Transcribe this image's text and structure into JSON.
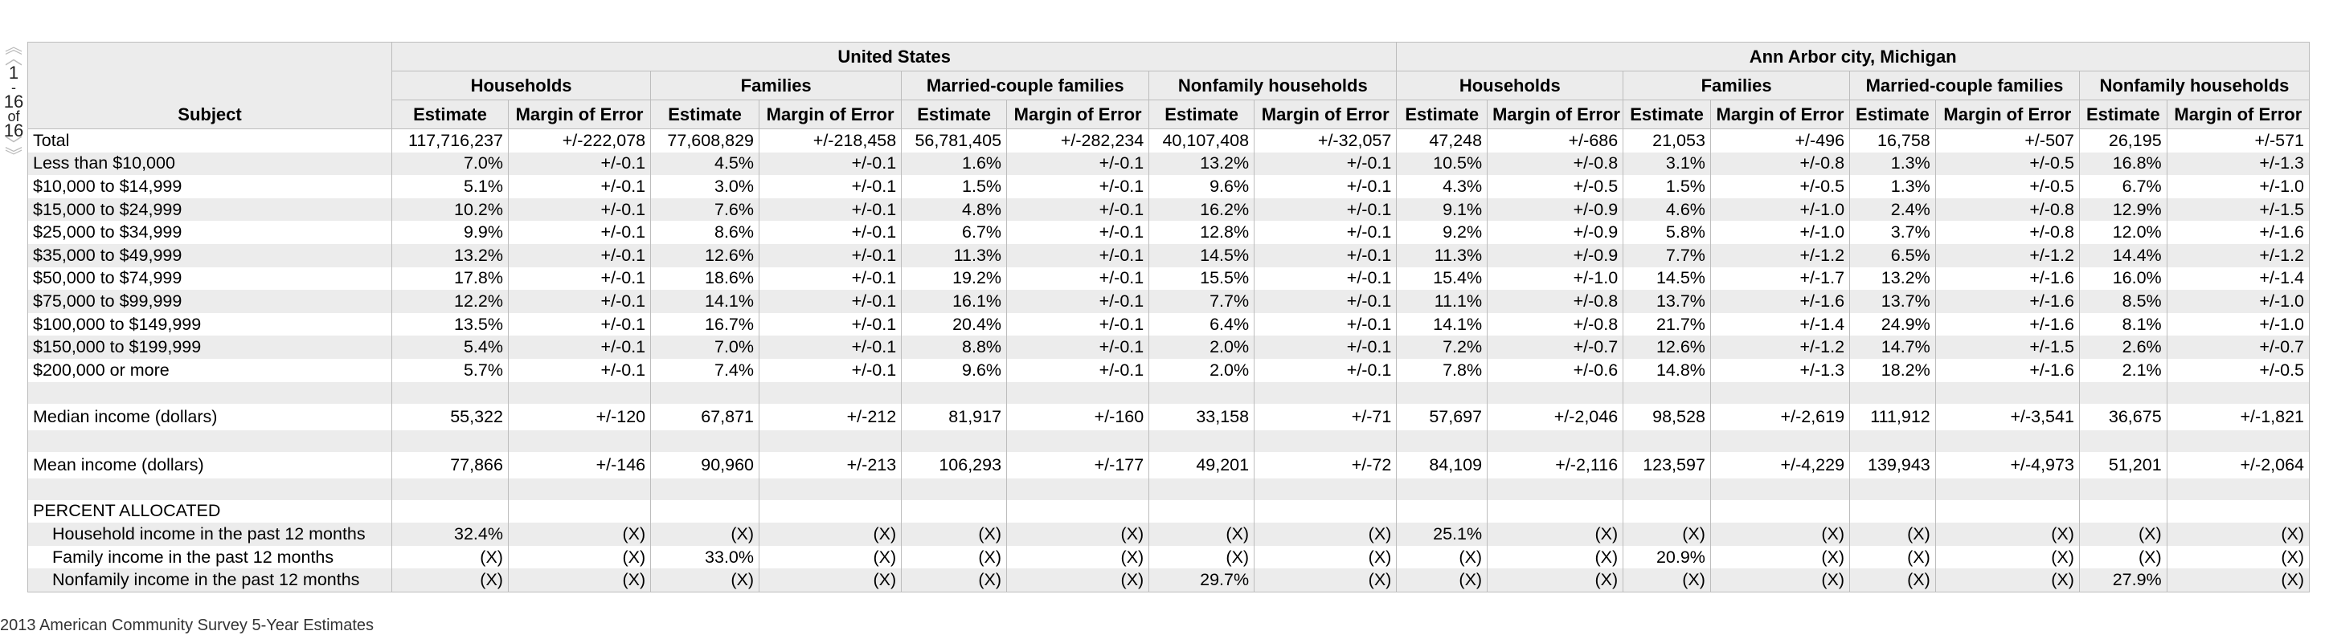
{
  "pager": {
    "up_double": "︽",
    "up": "︿",
    "current": "1",
    "dash": "-",
    "to": "16",
    "of": "of",
    "total": "16",
    "down": "﹀",
    "down_double": "︾"
  },
  "table": {
    "subject_header": "Subject",
    "geographies": [
      "United States",
      "Ann Arbor city, Michigan"
    ],
    "groups": [
      "Households",
      "Families",
      "Married-couple families",
      "Nonfamily households"
    ],
    "col_estimate": "Estimate",
    "col_moe": "Margin of Error",
    "rows": [
      {
        "label": "Total",
        "cells": [
          "117,716,237",
          "+/-222,078",
          "77,608,829",
          "+/-218,458",
          "56,781,405",
          "+/-282,234",
          "40,107,408",
          "+/-32,057",
          "47,248",
          "+/-686",
          "21,053",
          "+/-496",
          "16,758",
          "+/-507",
          "26,195",
          "+/-571"
        ]
      },
      {
        "label": "Less than $10,000",
        "cells": [
          "7.0%",
          "+/-0.1",
          "4.5%",
          "+/-0.1",
          "1.6%",
          "+/-0.1",
          "13.2%",
          "+/-0.1",
          "10.5%",
          "+/-0.8",
          "3.1%",
          "+/-0.8",
          "1.3%",
          "+/-0.5",
          "16.8%",
          "+/-1.3"
        ]
      },
      {
        "label": "$10,000 to $14,999",
        "cells": [
          "5.1%",
          "+/-0.1",
          "3.0%",
          "+/-0.1",
          "1.5%",
          "+/-0.1",
          "9.6%",
          "+/-0.1",
          "4.3%",
          "+/-0.5",
          "1.5%",
          "+/-0.5",
          "1.3%",
          "+/-0.5",
          "6.7%",
          "+/-1.0"
        ]
      },
      {
        "label": "$15,000 to $24,999",
        "cells": [
          "10.2%",
          "+/-0.1",
          "7.6%",
          "+/-0.1",
          "4.8%",
          "+/-0.1",
          "16.2%",
          "+/-0.1",
          "9.1%",
          "+/-0.9",
          "4.6%",
          "+/-1.0",
          "2.4%",
          "+/-0.8",
          "12.9%",
          "+/-1.5"
        ]
      },
      {
        "label": "$25,000 to $34,999",
        "cells": [
          "9.9%",
          "+/-0.1",
          "8.6%",
          "+/-0.1",
          "6.7%",
          "+/-0.1",
          "12.8%",
          "+/-0.1",
          "9.2%",
          "+/-0.9",
          "5.8%",
          "+/-1.0",
          "3.7%",
          "+/-0.8",
          "12.0%",
          "+/-1.6"
        ]
      },
      {
        "label": "$35,000 to $49,999",
        "cells": [
          "13.2%",
          "+/-0.1",
          "12.6%",
          "+/-0.1",
          "11.3%",
          "+/-0.1",
          "14.5%",
          "+/-0.1",
          "11.3%",
          "+/-0.9",
          "7.7%",
          "+/-1.2",
          "6.5%",
          "+/-1.2",
          "14.4%",
          "+/-1.2"
        ]
      },
      {
        "label": "$50,000 to $74,999",
        "cells": [
          "17.8%",
          "+/-0.1",
          "18.6%",
          "+/-0.1",
          "19.2%",
          "+/-0.1",
          "15.5%",
          "+/-0.1",
          "15.4%",
          "+/-1.0",
          "14.5%",
          "+/-1.7",
          "13.2%",
          "+/-1.6",
          "16.0%",
          "+/-1.4"
        ]
      },
      {
        "label": "$75,000 to $99,999",
        "cells": [
          "12.2%",
          "+/-0.1",
          "14.1%",
          "+/-0.1",
          "16.1%",
          "+/-0.1",
          "7.7%",
          "+/-0.1",
          "11.1%",
          "+/-0.8",
          "13.7%",
          "+/-1.6",
          "13.7%",
          "+/-1.6",
          "8.5%",
          "+/-1.0"
        ]
      },
      {
        "label": "$100,000 to $149,999",
        "cells": [
          "13.5%",
          "+/-0.1",
          "16.7%",
          "+/-0.1",
          "20.4%",
          "+/-0.1",
          "6.4%",
          "+/-0.1",
          "14.1%",
          "+/-0.8",
          "21.7%",
          "+/-1.4",
          "24.9%",
          "+/-1.6",
          "8.1%",
          "+/-1.0"
        ]
      },
      {
        "label": "$150,000 to $199,999",
        "cells": [
          "5.4%",
          "+/-0.1",
          "7.0%",
          "+/-0.1",
          "8.8%",
          "+/-0.1",
          "2.0%",
          "+/-0.1",
          "7.2%",
          "+/-0.7",
          "12.6%",
          "+/-1.2",
          "14.7%",
          "+/-1.5",
          "2.6%",
          "+/-0.7"
        ]
      },
      {
        "label": "$200,000 or more",
        "cells": [
          "5.7%",
          "+/-0.1",
          "7.4%",
          "+/-0.1",
          "9.6%",
          "+/-0.1",
          "2.0%",
          "+/-0.1",
          "7.8%",
          "+/-0.6",
          "14.8%",
          "+/-1.3",
          "18.2%",
          "+/-1.6",
          "2.1%",
          "+/-0.5"
        ]
      },
      {
        "label": "Median income (dollars)",
        "cells": [
          "55,322",
          "+/-120",
          "67,871",
          "+/-212",
          "81,917",
          "+/-160",
          "33,158",
          "+/-71",
          "57,697",
          "+/-2,046",
          "98,528",
          "+/-2,619",
          "111,912",
          "+/-3,541",
          "36,675",
          "+/-1,821"
        ]
      },
      {
        "label": "Mean income (dollars)",
        "cells": [
          "77,866",
          "+/-146",
          "90,960",
          "+/-213",
          "106,293",
          "+/-177",
          "49,201",
          "+/-72",
          "84,109",
          "+/-2,116",
          "123,597",
          "+/-4,229",
          "139,943",
          "+/-4,973",
          "51,201",
          "+/-2,064"
        ]
      },
      {
        "label": "PERCENT ALLOCATED",
        "cells": [
          "",
          "",
          "",
          "",
          "",
          "",
          "",
          "",
          "",
          "",
          "",
          "",
          "",
          "",
          "",
          ""
        ]
      },
      {
        "label": "Household income in the past 12 months",
        "cells": [
          "32.4%",
          "(X)",
          "(X)",
          "(X)",
          "(X)",
          "(X)",
          "(X)",
          "(X)",
          "25.1%",
          "(X)",
          "(X)",
          "(X)",
          "(X)",
          "(X)",
          "(X)",
          "(X)"
        ]
      },
      {
        "label": "Family income in the past 12 months",
        "cells": [
          "(X)",
          "(X)",
          "33.0%",
          "(X)",
          "(X)",
          "(X)",
          "(X)",
          "(X)",
          "(X)",
          "(X)",
          "20.9%",
          "(X)",
          "(X)",
          "(X)",
          "(X)",
          "(X)"
        ]
      },
      {
        "label": "Nonfamily income in the past 12 months",
        "cells": [
          "(X)",
          "(X)",
          "(X)",
          "(X)",
          "(X)",
          "(X)",
          "29.7%",
          "(X)",
          "(X)",
          "(X)",
          "(X)",
          "(X)",
          "(X)",
          "(X)",
          "27.9%",
          "(X)"
        ]
      }
    ]
  },
  "footer": "2013 American Community Survey 5-Year Estimates"
}
